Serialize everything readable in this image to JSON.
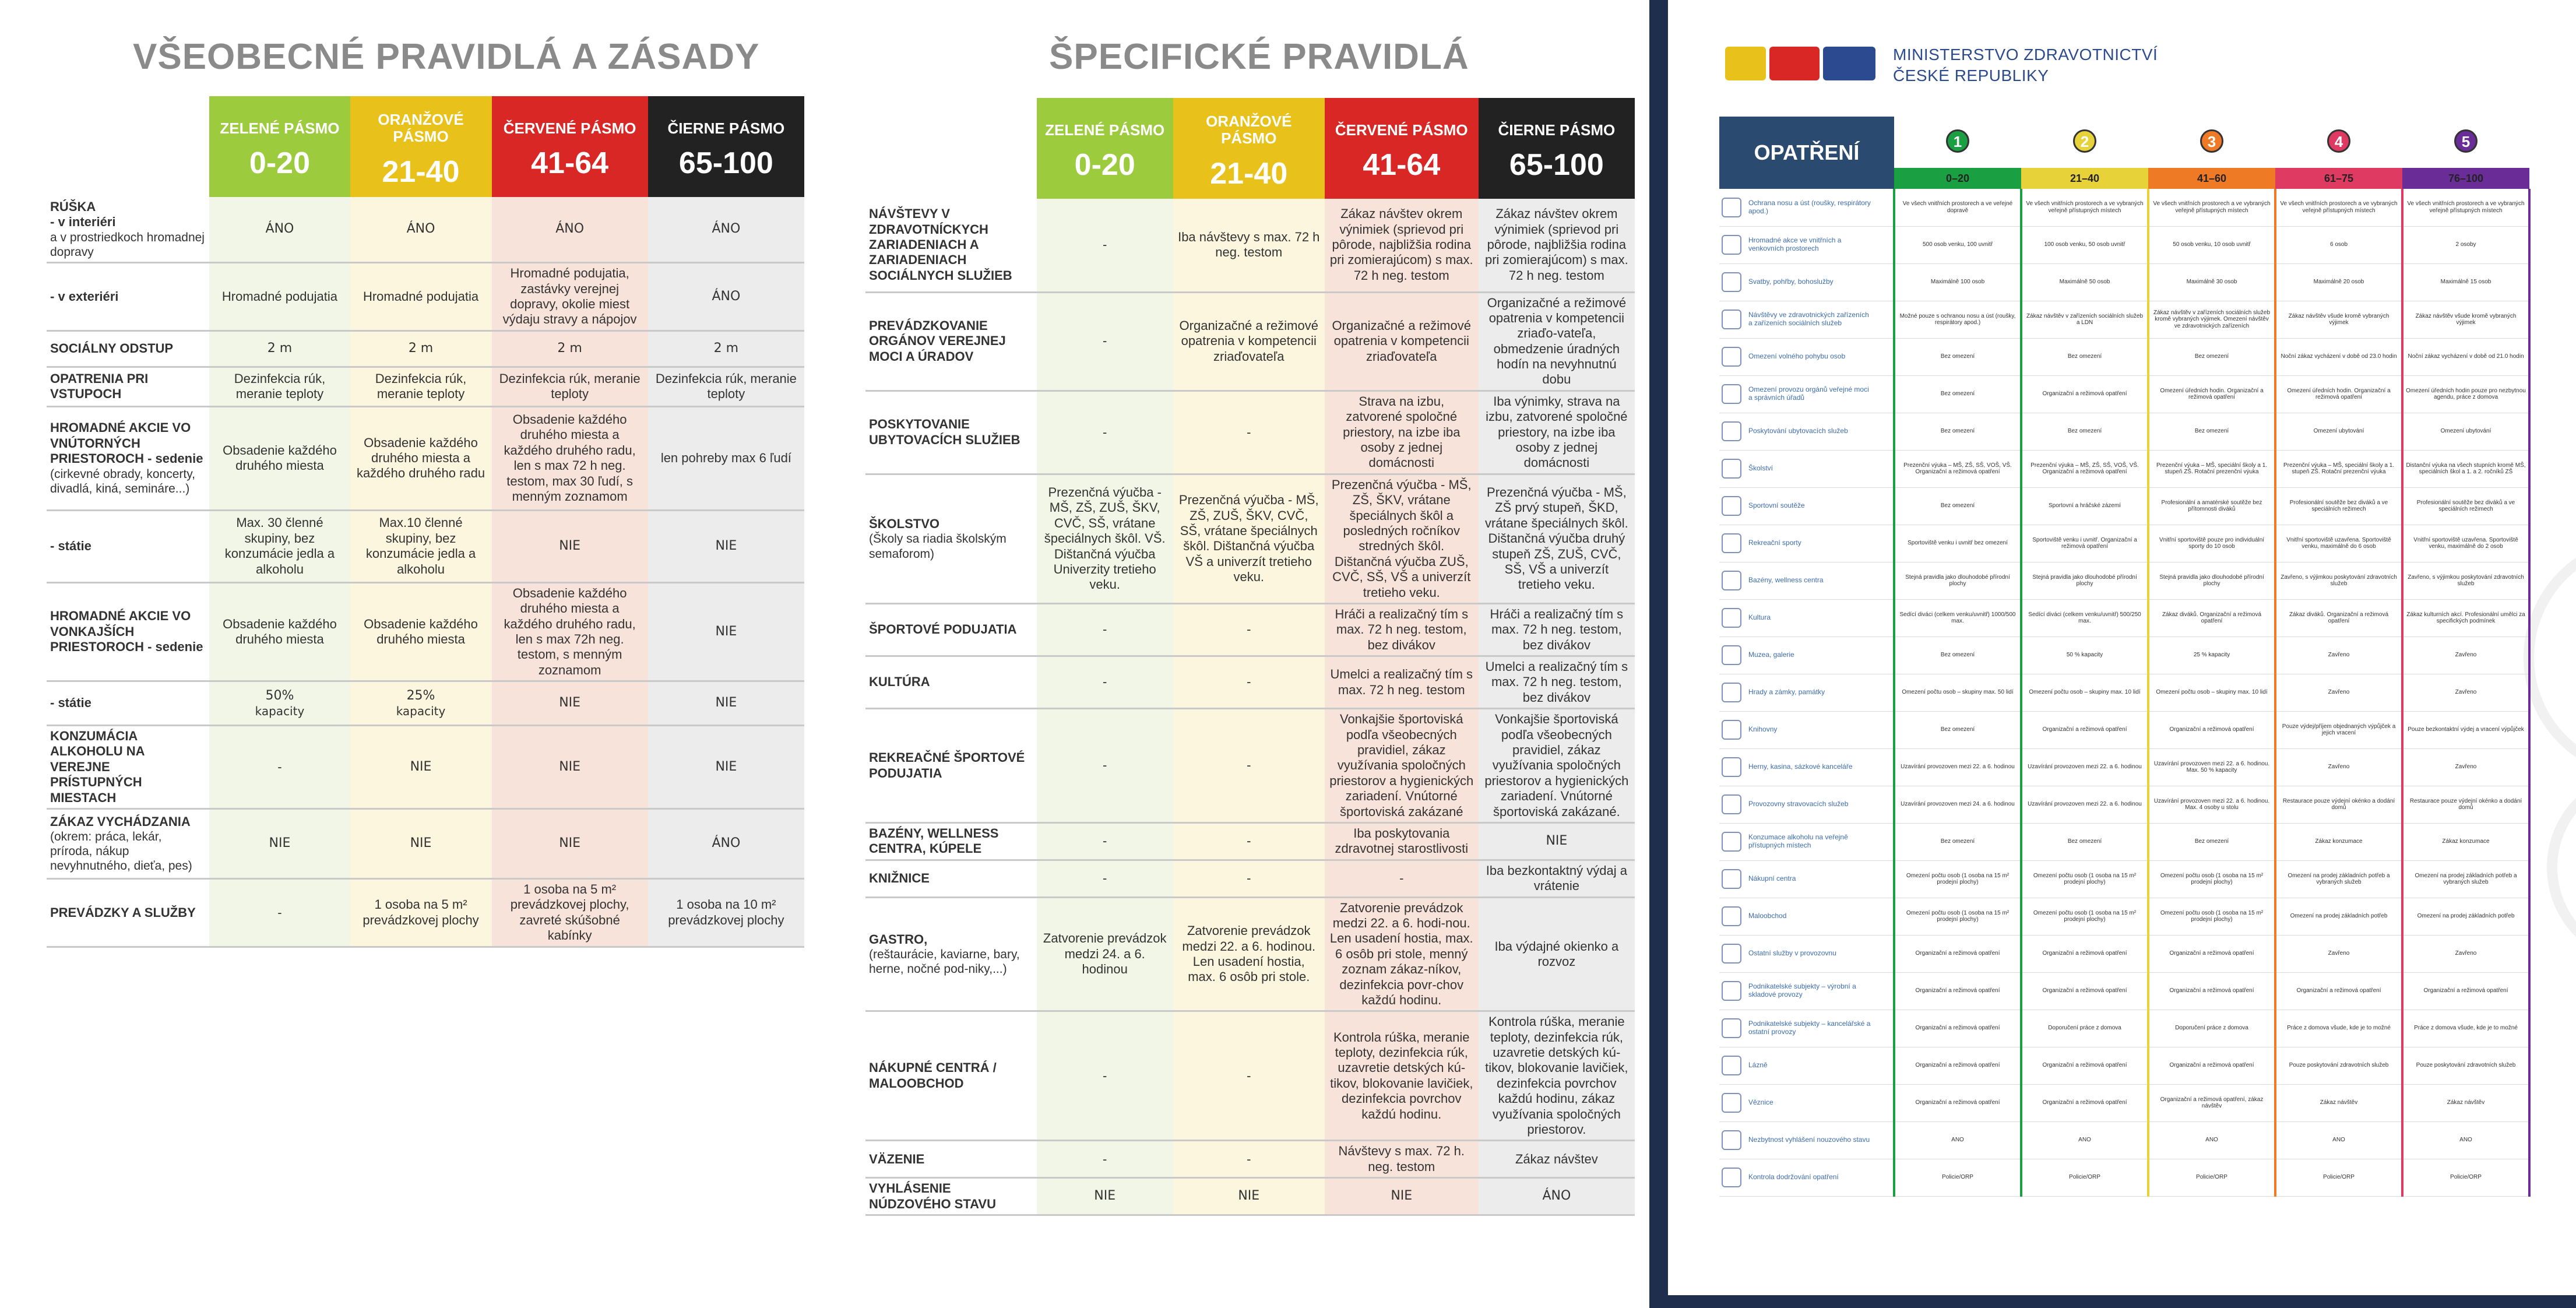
{
  "general": {
    "title": "VŠEOBECNÉ PRAVIDLÁ A ZÁSADY",
    "zones": [
      {
        "name": "ZELENÉ PÁSMO",
        "range": "0-20",
        "color": "#9ccc3d"
      },
      {
        "name": "ORANŽOVÉ PÁSMO",
        "range": "21-40",
        "color": "#e8c21b"
      },
      {
        "name": "ČERVENÉ PÁSMO",
        "range": "41-64",
        "color": "#d92725"
      },
      {
        "name": "ČIERNE PÁSMO",
        "range": "65-100",
        "color": "#222222"
      }
    ],
    "rows": [
      {
        "label": "RÚŠKA",
        "sublabel": "- v interiéri",
        "note": "a v prostriedkoch hromadnej dopravy",
        "cells": [
          "ÁNO",
          "ÁNO",
          "ÁNO",
          "ÁNO"
        ],
        "big": true
      },
      {
        "label": "",
        "sublabel": "- v exteriéri",
        "note": "",
        "cells": [
          "Hromadné podujatia",
          "Hromadné podujatia",
          "Hromadné podujatia, zastávky verejnej dopravy, okolie miest výdaju stravy a nápojov",
          "ÁNO"
        ],
        "big": false,
        "bigcols": [
          3
        ]
      },
      {
        "label": "SOCIÁLNY ODSTUP",
        "sublabel": "",
        "note": "",
        "cells": [
          "2 m",
          "2 m",
          "2 m",
          "2 m"
        ],
        "big": true
      },
      {
        "label": "OPATRENIA PRI VSTUPOCH",
        "sublabel": "",
        "note": "",
        "cells": [
          "Dezinfekcia rúk, meranie teploty",
          "Dezinfekcia rúk, meranie teploty",
          "Dezinfekcia rúk, meranie teploty",
          "Dezinfekcia rúk, meranie teploty"
        ],
        "big": false
      },
      {
        "label": "HROMADNÉ AKCIE VO VNÚTORNÝCH PRIESTOROCH - sedenie",
        "sublabel": "",
        "note": "(cirkevné obrady, koncerty, divadlá, kiná, semináre...)",
        "cells": [
          "Obsadenie každého druhého miesta",
          "Obsadenie každého druhého miesta a každého druhého radu",
          "Obsadenie každého druhého miesta a každého druhého radu, len s max 72 h neg. testom, max 30 ľudí, s menným zoznamom",
          "len pohreby max 6 ľudí"
        ],
        "big": false
      },
      {
        "label": "",
        "sublabel": "- státie",
        "note": "",
        "cells": [
          "Max. 30 členné skupiny, bez konzumácie jedla a alkoholu",
          "Max.10 členné skupiny, bez konzumácie jedla a alkoholu",
          "NIE",
          "NIE"
        ],
        "big": false,
        "bigcols": [
          2,
          3
        ]
      },
      {
        "label": "HROMADNÉ AKCIE VO VONKAJŠÍCH PRIESTOROCH - sedenie",
        "sublabel": "",
        "note": "",
        "cells": [
          "Obsadenie každého druhého miesta",
          "Obsadenie každého druhého miesta",
          "Obsadenie každého druhého miesta a každého druhého radu, len s max 72h neg. testom, s menným zoznamom",
          "NIE"
        ],
        "big": false,
        "bigcols": [
          3
        ]
      },
      {
        "label": "",
        "sublabel": "- státie",
        "note": "",
        "cells": [
          "50%",
          "25%",
          "NIE",
          "NIE"
        ],
        "cellnotes": [
          "kapacity",
          "kapacity",
          "",
          ""
        ],
        "big": true
      },
      {
        "label": "KONZUMÁCIA ALKOHOLU NA VEREJNE PRÍSTUPNÝCH MIESTACH",
        "sublabel": "",
        "note": "",
        "cells": [
          "-",
          "NIE",
          "NIE",
          "NIE"
        ],
        "big": false,
        "bigcols": [
          1,
          2,
          3
        ]
      },
      {
        "label": "ZÁKAZ VYCHÁDZANIA",
        "sublabel": "",
        "note": "(okrem: práca, lekár, príroda, nákup nevyhnutného, dieťa, pes)",
        "cells": [
          "NIE",
          "NIE",
          "NIE",
          "ÁNO"
        ],
        "big": true
      },
      {
        "label": "PREVÁDZKY A SLUŽBY",
        "sublabel": "",
        "note": "",
        "cells": [
          "-",
          "1 osoba na 5 m² prevádzkovej plochy",
          "1 osoba na 5 m² prevádzkovej plochy, zavreté skúšobné kabínky",
          "1 osoba na 10 m² prevádzkovej plochy"
        ],
        "big": false
      }
    ]
  },
  "specific": {
    "title": "ŠPECIFICKÉ PRAVIDLÁ",
    "zones": [
      {
        "name": "ZELENÉ PÁSMO",
        "range": "0-20"
      },
      {
        "name": "ORANŽOVÉ PÁSMO",
        "range": "21-40"
      },
      {
        "name": "ČERVENÉ PÁSMO",
        "range": "41-64"
      },
      {
        "name": "ČIERNE PÁSMO",
        "range": "65-100"
      }
    ],
    "rows": [
      {
        "label": "NÁVŠTEVY V ZDRAVOTNÍCKYCH ZARIADENIACH A ZARIADENIACH SOCIÁLNYCH SLUŽIEB",
        "note": "",
        "cells": [
          "-",
          "Iba návštevy s max. 72 h neg. testom",
          "Zákaz návštev okrem výnimiek (sprievod pri pôrode, najbližšia rodina pri zomierajúcom) s max. 72 h neg. testom",
          "Zákaz návštev okrem výnimiek (sprievod pri pôrode, najbližšia rodina pri zomierajúcom) s max. 72 h neg. testom"
        ]
      },
      {
        "label": "PREVÁDZKOVANIE ORGÁNOV VEREJNEJ MOCI A ÚRADOV",
        "note": "",
        "cells": [
          "-",
          "Organizačné a režimové opatrenia v kompetencii zriaďovateľa",
          "Organizačné a režimové opatrenia v kompetencii zriaďovateľa",
          "Organizačné a režimové opatrenia v kompetencii zriaďo-vateľa, obmedzenie úradných hodín na nevyhnutnú dobu"
        ]
      },
      {
        "label": "POSKYTOVANIE UBYTOVACÍCH SLUŽIEB",
        "note": "",
        "cells": [
          "-",
          "-",
          "Strava na izbu, zatvorené spoločné priestory, na izbe iba osoby z jednej domácnosti",
          "Iba výnimky, strava na izbu, zatvorené spoločné priestory, na izbe iba osoby z jednej domácnosti"
        ]
      },
      {
        "label": "ŠKOLSTVO",
        "note": "(Školy sa riadia školským semaforom)",
        "cells": [
          "Prezenčná výučba - MŠ, ZŠ, ZUŠ, ŠKV, CVČ, SŠ, vrátane špeciálnych škôl. VŠ. Dištančná výučba Univerzity tretieho veku.",
          "Prezenčná výučba - MŠ, ZŠ, ZUŠ, ŠKV, CVČ, SŠ, vrátane špeciálnych škôl. Dištančná výučba VŠ a univerzít tretieho veku.",
          "Prezenčná výučba - MŠ, ZŠ, ŠKV, vrátane špeciálnych škôl a posledných ročníkov stredných škôl. Dištančná výučba ZUŠ, CVČ, SŠ, VŠ a univerzít tretieho veku.",
          "Prezenčná výučba - MŠ, ZŠ prvý stupeň, ŠKD, vrátane špeciálnych škôl. Dištančná výučba druhý stupeň ZŠ, ZUŠ, CVČ, SŠ, VŠ a univerzít tretieho veku."
        ]
      },
      {
        "label": "ŠPORTOVÉ PODUJATIA",
        "note": "",
        "cells": [
          "-",
          "-",
          "Hráči a realizačný tím s max. 72 h neg. testom, bez divákov",
          "Hráči a realizačný tím s max. 72 h neg. testom, bez divákov"
        ]
      },
      {
        "label": "KULTÚRA",
        "note": "",
        "cells": [
          "-",
          "-",
          "Umelci a realizačný tím s max. 72 h neg. testom",
          "Umelci a realizačný tím s max. 72 h neg. testom, bez divákov"
        ]
      },
      {
        "label": "REKREAČNÉ ŠPORTOVÉ PODUJATIA",
        "note": "",
        "cells": [
          "-",
          "-",
          "Vonkajšie športoviská podľa všeobecných pravidiel, zákaz využívania spoločných priestorov a hygienických zariadení. Vnútorné športoviská zakázané",
          "Vonkajšie športoviská podľa všeobecných pravidiel, zákaz využívania spoločných priestorov a hygienických zariadení. Vnútorné športoviská zakázané."
        ]
      },
      {
        "label": "BAZÉNY, WELLNESS CENTRA, KÚPELE",
        "note": "",
        "cells": [
          "-",
          "-",
          "Iba poskytovania zdravotnej starostlivosti",
          "NIE"
        ],
        "bigcols": [
          3
        ]
      },
      {
        "label": "KNIŽNICE",
        "note": "",
        "cells": [
          "-",
          "-",
          "-",
          "Iba bezkontaktný výdaj a vrátenie"
        ]
      },
      {
        "label": "GASTRO,",
        "note": "(reštaurácie, kaviarne, bary, herne, nočné pod-niky,...)",
        "cells": [
          "Zatvorenie prevádzok medzi 24. a 6. hodinou",
          "Zatvorenie prevádzok medzi 22. a 6. hodinou. Len usadení hostia, max. 6 osôb pri stole.",
          "Zatvorenie prevádzok medzi 22. a 6. hodi-nou. Len usadení hostia, max. 6 osôb pri stole, menný zoznam zákaz-níkov, dezinfekcia povr-chov každú hodinu.",
          "Iba výdajné okienko a rozvoz"
        ]
      },
      {
        "label": "NÁKUPNÉ CENTRÁ / MALOOBCHOD",
        "note": "",
        "cells": [
          "-",
          "-",
          "Kontrola rúška, meranie teploty, dezinfekcia rúk, uzavretie detských kú-tikov, blokovanie lavičiek, dezinfekcia povrchov každú hodinu.",
          "Kontrola rúška, meranie teploty, dezinfekcia rúk, uzavretie detských kú-tikov, blokovanie lavičiek, dezinfekcia povrchov každú hodinu, zákaz využívania spoločných priestorov."
        ]
      },
      {
        "label": "VÄZENIE",
        "note": "",
        "cells": [
          "-",
          "-",
          "Návštevy s max. 72 h. neg. testom",
          "Zákaz návštev"
        ]
      },
      {
        "label": "VYHLÁSENIE NÚDZOVÉHO STAVU",
        "note": "",
        "cells": [
          "NIE",
          "NIE",
          "NIE",
          "ÁNO"
        ],
        "bigcols": [
          0,
          1,
          2,
          3
        ]
      }
    ]
  },
  "czech": {
    "ministry": [
      "MINISTERSTVO ZDRAVOTNICTVÍ",
      "ČESKÉ REPUBLIKY"
    ],
    "header": "OPATŘENÍ",
    "levels": [
      {
        "num": "1",
        "range": "0–20",
        "color": "#1aa043"
      },
      {
        "num": "2",
        "range": "21–40",
        "color": "#e7d23a"
      },
      {
        "num": "3",
        "range": "41–60",
        "color": "#ee7a26"
      },
      {
        "num": "4",
        "range": "61–75",
        "color": "#df3a62"
      },
      {
        "num": "5",
        "range": "76–100",
        "color": "#6a2c96"
      }
    ],
    "rows": [
      {
        "label": "Ochrana nosu a úst (roušky, respirátory apod.)",
        "cells": [
          "Ve všech vnitřních prostorech a ve veřejné dopravě",
          "Ve všech vnitřních prostorech a ve vybraných veřejně přístupných místech",
          "Ve všech vnitřních prostorech a ve vybraných veřejně přístupných místech",
          "Ve všech vnitřních prostorech a ve vybraných veřejně přístupných místech",
          "Ve všech vnitřních prostorech a ve vybraných veřejně přístupných místech"
        ]
      },
      {
        "label": "Hromadné akce ve vnitřních a venkovních prostorech",
        "cells": [
          "500 osob venku, 100 uvnitř",
          "100 osob venku, 50 osob uvnitř",
          "50 osob venku, 10 osob uvnitř",
          "6 osob",
          "2 osoby"
        ]
      },
      {
        "label": "Svatby, pohřby, bohoslužby",
        "cells": [
          "Maximálně 100 osob",
          "Maximálně 50 osob",
          "Maximálně 30 osob",
          "Maximálně 20 osob",
          "Maximálně 15 osob"
        ]
      },
      {
        "label": "Návštěvy ve zdravotnických zařízeních a zařízeních sociálních služeb",
        "cells": [
          "Možné pouze s ochranou nosu a úst (roušky, respirátory apod.)",
          "Zákaz návštěv v zařízeních sociálních služeb a LDN",
          "Zákaz návštěv v zařízeních sociálních služeb kromě vybraných výjimek. Omezení návštěv ve zdravotnických zařízeních",
          "Zákaz návštěv všude kromě vybraných výjimek",
          "Zákaz návštěv všude kromě vybraných výjimek"
        ]
      },
      {
        "label": "Omezení volného pohybu osob",
        "cells": [
          "Bez omezení",
          "Bez omezení",
          "Bez omezení",
          "Noční zákaz vycházení v době od 23.0 hodin",
          "Noční zákaz vycházení v době od 21.0 hodin"
        ]
      },
      {
        "label": "Omezení provozu orgánů veřejné moci a správních úřadů",
        "cells": [
          "Bez omezení",
          "Organizační a režimová opatření",
          "Omezení úředních hodin. Organizační a režimová opatření",
          "Omezení úředních hodin. Organizační a režimová opatření",
          "Omezení úředních hodin pouze pro nezbytnou agendu, práce z domova"
        ]
      },
      {
        "label": "Poskytování ubytovacích služeb",
        "cells": [
          "Bez omezení",
          "Bez omezení",
          "Bez omezení",
          "Omezení ubytování",
          "Omezení ubytování"
        ]
      },
      {
        "label": "Školství",
        "cells": [
          "Prezenční výuka – MŠ, ZŠ, SŠ, VOŠ, VŠ. Organizační a režimová opatření",
          "Prezenční výuka – MŠ, ZŠ, SŠ, VOŠ, VŠ. Organizační a režimová opatření",
          "Prezenční výuka – MŠ, speciální školy a 1. stupeň ZŠ. Rotační prezenční výuka",
          "Prezenční výuka – MŠ, speciální školy a 1. stupeň ZŠ. Rotační prezenční výuka",
          "Distanční výuka na všech stupních kromě MŠ, speciálních škol a 1. a 2. ročníků ZŠ"
        ]
      },
      {
        "label": "Sportovní soutěže",
        "cells": [
          "Bez omezení",
          "Sportovní a hráčské zázemí",
          "Profesionální a amatérské soutěže bez přítomnosti diváků",
          "Profesionální soutěže bez diváků a ve speciálních režimech",
          "Profesionální soutěže bez diváků a ve speciálních režimech"
        ]
      },
      {
        "label": "Rekreační sporty",
        "cells": [
          "Sportoviště venku i uvnitř bez omezení",
          "Sportoviště venku i uvnitř. Organizační a režimová opatření",
          "Vnitřní sportoviště pouze pro individuální sporty do 10 osob",
          "Vnitřní sportoviště uzavřena. Sportoviště venku, maximálně do 6 osob",
          "Vnitřní sportoviště uzavřena. Sportoviště venku, maximálně do 2 osob"
        ]
      },
      {
        "label": "Bazény, wellness centra",
        "cells": [
          "Stejná pravidla jako dlouhodobé přírodní plochy",
          "Stejná pravidla jako dlouhodobé přírodní plochy",
          "Stejná pravidla jako dlouhodobé přírodní plochy",
          "Zavřeno, s výjimkou poskytování zdravotních služeb",
          "Zavřeno, s výjimkou poskytování zdravotních služeb"
        ]
      },
      {
        "label": "Kultura",
        "cells": [
          "Sedící diváci (celkem venku/uvnitř) 1000/500 max.",
          "Sedící diváci (celkem venku/uvnitř) 500/250 max.",
          "Zákaz diváků. Organizační a režimová opatření",
          "Zákaz diváků. Organizační a režimová opatření",
          "Zákaz kulturních akcí. Profesionální umělci za specifických podmínek"
        ]
      },
      {
        "label": "Muzea, galerie",
        "cells": [
          "Bez omezení",
          "50 % kapacity",
          "25 % kapacity",
          "Zavřeno",
          "Zavřeno"
        ]
      },
      {
        "label": "Hrady a zámky, památky",
        "cells": [
          "Omezení počtu osob – skupiny max. 50 lidí",
          "Omezení počtu osob – skupiny max. 10 lidí",
          "Omezení počtu osob – skupiny max. 10 lidí",
          "Zavřeno",
          "Zavřeno"
        ]
      },
      {
        "label": "Knihovny",
        "cells": [
          "Bez omezení",
          "Organizační a režimová opatření",
          "Organizační a režimová opatření",
          "Pouze výdej/příjem objednaných výpůjček a jejich vracení",
          "Pouze bezkontaktní výdej a vracení výpůjček"
        ]
      },
      {
        "label": "Herny, kasina, sázkové kanceláře",
        "cells": [
          "Uzavírání provozoven mezi 22. a 6. hodinou",
          "Uzavírání provozoven mezi 22. a 6. hodinou",
          "Uzavírání provozoven mezi 22. a 6. hodinou. Max. 50 % kapacity",
          "Zavřeno",
          "Zavřeno"
        ]
      },
      {
        "label": "Provozovny stravovacích služeb",
        "cells": [
          "Uzavírání provozoven mezi 24. a 6. hodinou",
          "Uzavírání provozoven mezi 22. a 6. hodinou",
          "Uzavírání provozoven mezi 22. a 6. hodinou. Max. 4 osoby u stolu",
          "Restaurace pouze výdejní okénko a dodání domů",
          "Restaurace pouze výdejní okénko a dodání domů"
        ]
      },
      {
        "label": "Konzumace alkoholu na veřejně přístupných místech",
        "cells": [
          "Bez omezení",
          "Bez omezení",
          "Bez omezení",
          "Zákaz konzumace",
          "Zákaz konzumace"
        ]
      },
      {
        "label": "Nákupní centra",
        "cells": [
          "Omezení počtu osob (1 osoba na 15 m² prodejní plochy)",
          "Omezení počtu osob (1 osoba na 15 m² prodejní plochy)",
          "Omezení počtu osob (1 osoba na 15 m² prodejní plochy)",
          "Omezení na prodej základních potřeb a vybraných služeb",
          "Omezení na prodej základních potřeb a vybraných služeb"
        ]
      },
      {
        "label": "Maloobchod",
        "cells": [
          "Omezení počtu osob (1 osoba na 15 m² prodejní plochy)",
          "Omezení počtu osob (1 osoba na 15 m² prodejní plochy)",
          "Omezení počtu osob (1 osoba na 15 m² prodejní plochy)",
          "Omezení na prodej základních potřeb",
          "Omezení na prodej základních potřeb"
        ]
      },
      {
        "label": "Ostatní služby v provozovnu",
        "cells": [
          "Organizační a režimová opatření",
          "Organizační a režimová opatření",
          "Organizační a režimová opatření",
          "Zavřeno",
          "Zavřeno"
        ]
      },
      {
        "label": "Podnikatelské subjekty – výrobní a skladové provozy",
        "cells": [
          "Organizační a režimová opatření",
          "Organizační a režimová opatření",
          "Organizační a režimová opatření",
          "Organizační a režimová opatření",
          "Organizační a režimová opatření"
        ]
      },
      {
        "label": "Podnikatelské subjekty – kancelářské a ostatní provozy",
        "cells": [
          "Organizační a režimová opatření",
          "Doporučení práce z domova",
          "Doporučení práce z domova",
          "Práce z domova všude, kde je to možné",
          "Práce z domova všude, kde je to možné"
        ]
      },
      {
        "label": "Lázně",
        "cells": [
          "Organizační a režimová opatření",
          "Organizační a režimová opatření",
          "Organizační a režimová opatření",
          "Pouze poskytování zdravotních služeb",
          "Pouze poskytování zdravotních služeb"
        ]
      },
      {
        "label": "Věznice",
        "cells": [
          "Organizační a režimová opatření",
          "Organizační a režimová opatření",
          "Organizační a režimová opatření, zákaz návštěv",
          "Zákaz návštěv",
          "Zákaz návštěv"
        ]
      },
      {
        "label": "Nezbytnost vyhlášení nouzového stavu",
        "cells": [
          "ANO",
          "ANO",
          "ANO",
          "ANO",
          "ANO"
        ]
      },
      {
        "label": "Kontrola dodržování opatření",
        "cells": [
          "Policie/ORP",
          "Policie/ORP",
          "Policie/ORP",
          "Policie/ORP",
          "Policie/ORP"
        ]
      }
    ]
  }
}
